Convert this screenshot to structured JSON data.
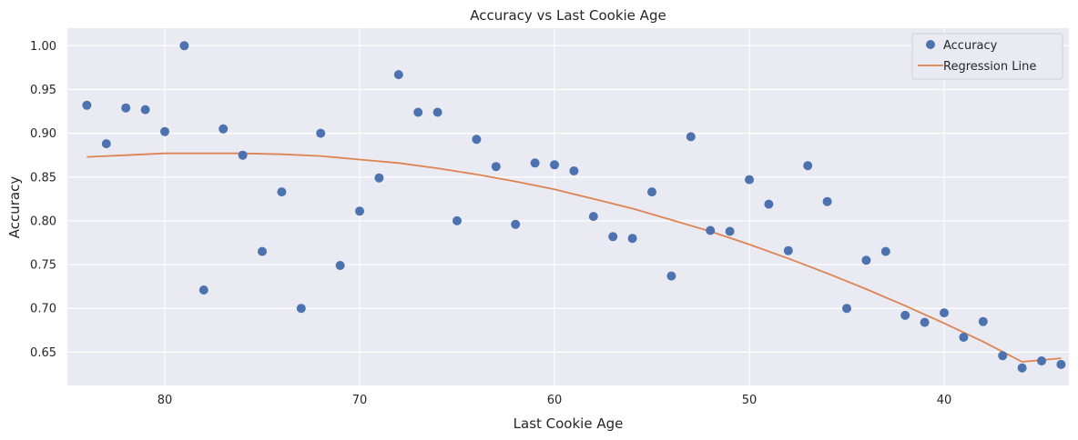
{
  "chart_data": {
    "type": "scatter",
    "title": "Accuracy vs Last Cookie Age",
    "xlabel": "Last Cookie Age",
    "ylabel": "Accuracy",
    "x_reversed": true,
    "xlim": [
      85,
      33.6
    ],
    "ylim": [
      0.612,
      1.02
    ],
    "xticks": [
      80,
      70,
      60,
      50,
      40
    ],
    "yticks": [
      0.65,
      0.7,
      0.75,
      0.8,
      0.85,
      0.9,
      0.95,
      1.0
    ],
    "ytick_labels": [
      "0.65",
      "0.70",
      "0.75",
      "0.80",
      "0.85",
      "0.90",
      "0.95",
      "1.00"
    ],
    "grid": true,
    "legend_position": "top-right",
    "colors": {
      "background": "#eaeaf2",
      "grid": "#ffffff",
      "points": "#4c72b0",
      "line": "#dd8452"
    },
    "series": [
      {
        "name": "Accuracy",
        "kind": "scatter",
        "x": [
          84,
          83,
          82,
          81,
          80,
          79,
          78,
          77,
          76,
          75,
          74,
          73,
          72,
          71,
          70,
          69,
          68,
          67,
          66,
          65,
          64,
          63,
          62,
          61,
          60,
          59,
          58,
          57,
          56,
          55,
          54,
          53,
          52,
          51,
          50,
          49,
          48,
          47,
          46,
          45,
          44,
          43,
          42,
          41,
          40,
          39,
          38,
          37,
          36,
          35,
          34
        ],
        "y": [
          0.932,
          0.888,
          0.929,
          0.927,
          0.902,
          1.0,
          0.721,
          0.905,
          0.875,
          0.765,
          0.833,
          0.7,
          0.9,
          0.749,
          0.811,
          0.849,
          0.967,
          0.924,
          0.924,
          0.8,
          0.893,
          0.862,
          0.796,
          0.866,
          0.864,
          0.857,
          0.805,
          0.782,
          0.78,
          0.833,
          0.737,
          0.896,
          0.789,
          0.788,
          0.847,
          0.819,
          0.766,
          0.863,
          0.822,
          0.7,
          0.755,
          0.765,
          0.692,
          0.684,
          0.695,
          0.667,
          0.685,
          0.646,
          0.632,
          0.64,
          0.636
        ]
      },
      {
        "name": "Regression Line",
        "kind": "line",
        "x": [
          84,
          82,
          80,
          78,
          76,
          74,
          72,
          70,
          68,
          66,
          64,
          62,
          60,
          58,
          56,
          54,
          52,
          50,
          48,
          46,
          44,
          42,
          40,
          38,
          36,
          34
        ],
        "y": [
          0.873,
          0.875,
          0.877,
          0.877,
          0.877,
          0.876,
          0.874,
          0.87,
          0.866,
          0.86,
          0.853,
          0.845,
          0.836,
          0.825,
          0.814,
          0.801,
          0.788,
          0.773,
          0.757,
          0.74,
          0.722,
          0.703,
          0.683,
          0.662,
          0.639,
          0.643
        ]
      }
    ]
  }
}
